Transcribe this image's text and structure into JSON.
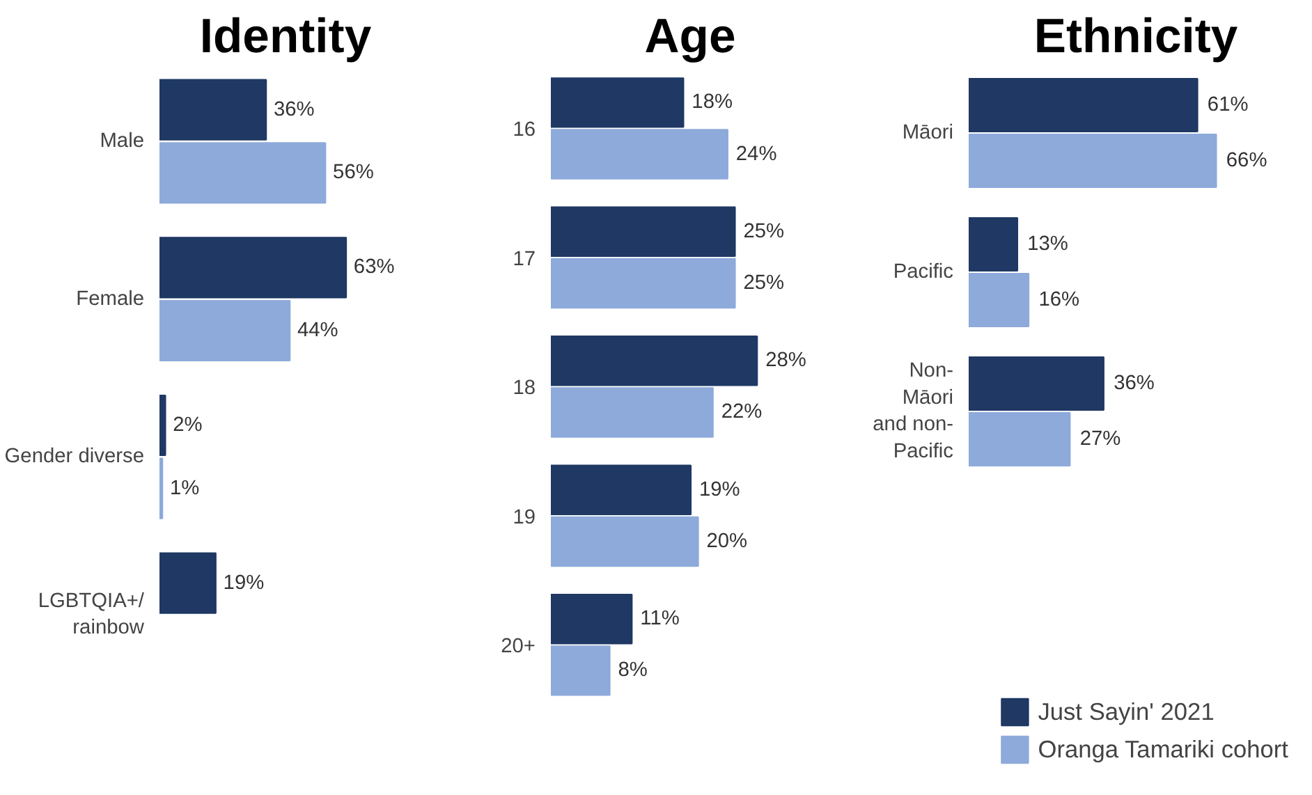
{
  "chart_data": [
    {
      "type": "bar",
      "orientation": "horizontal",
      "title": "Identity",
      "categories": [
        "Male",
        "Female",
        "Gender diverse",
        "LGBTQIA+/\nrainbow"
      ],
      "legend": false,
      "series": [
        {
          "color": "#1f3864",
          "values": [
            36,
            63,
            2,
            19
          ],
          "value_labels": [
            "36%",
            "63%",
            "2%",
            "19%"
          ]
        },
        {
          "color": "#8eaadb",
          "values": [
            56,
            44,
            1,
            null
          ],
          "value_labels": [
            "56%",
            "44%",
            "1%",
            null
          ]
        }
      ]
    },
    {
      "type": "bar",
      "orientation": "horizontal",
      "title": "Age",
      "categories": [
        "16",
        "17",
        "18",
        "19",
        "20+"
      ],
      "legend": false,
      "series": [
        {
          "color": "#1f3864",
          "values": [
            18,
            25,
            28,
            19,
            11
          ],
          "value_labels": [
            "18%",
            "25%",
            "28%",
            "19%",
            "11%"
          ]
        },
        {
          "color": "#8eaadb",
          "values": [
            24,
            25,
            22,
            20,
            8
          ],
          "value_labels": [
            "24%",
            "25%",
            "22%",
            "20%",
            "8%"
          ]
        }
      ]
    },
    {
      "type": "bar",
      "orientation": "horizontal",
      "title": "Ethnicity",
      "categories": [
        "Māori",
        "Pacific",
        "Non-\nMāori\nand non-\nPacific"
      ],
      "legend": "bottom right",
      "series": [
        {
          "name": "Just Sayin' 2021",
          "color": "#1f3864",
          "values": [
            61,
            13,
            36
          ],
          "value_labels": [
            "61%",
            "13%",
            "36%"
          ]
        },
        {
          "name": "Oranga Tamariki cohort",
          "color": "#8eaadb",
          "values": [
            66,
            16,
            27
          ],
          "value_labels": [
            "66%",
            "16%",
            "27%"
          ]
        }
      ]
    }
  ]
}
